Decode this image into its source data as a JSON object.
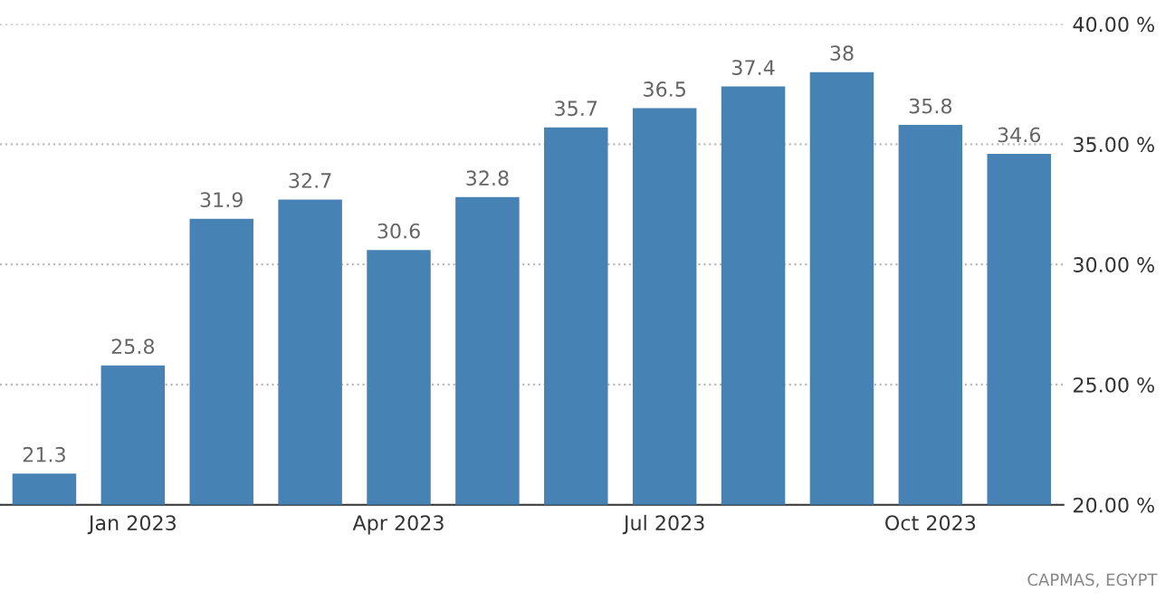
{
  "chart_data": {
    "type": "bar",
    "categories": [
      null,
      "Jan 2023",
      null,
      null,
      "Apr 2023",
      null,
      null,
      "Jul 2023",
      null,
      null,
      "Oct 2023",
      null
    ],
    "values": [
      21.3,
      25.8,
      31.9,
      32.7,
      30.6,
      32.8,
      35.7,
      36.5,
      37.4,
      38,
      35.8,
      34.6
    ],
    "color": "#4682b4",
    "ylim": [
      20,
      40
    ],
    "yticks": [
      {
        "value": 20,
        "label": "20.00 %"
      },
      {
        "value": 25,
        "label": "25.00 %"
      },
      {
        "value": 30,
        "label": "30.00 %"
      },
      {
        "value": 35,
        "label": "35.00 %"
      },
      {
        "value": 40,
        "label": "40.00 %"
      }
    ],
    "grid": "y",
    "data_labels": true,
    "annotations": [
      "CAPMAS, EGYPT"
    ]
  }
}
